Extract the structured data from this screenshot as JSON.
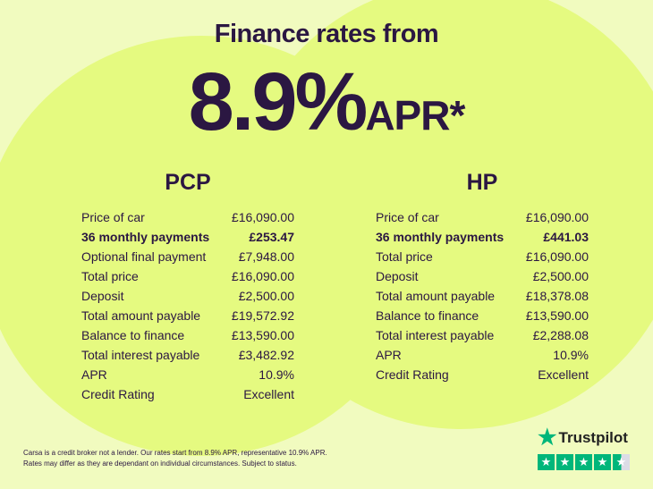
{
  "header": {
    "title": "Finance rates from",
    "rate": "8.9%",
    "rate_suffix": "APR*"
  },
  "pcp": {
    "title": "PCP",
    "rows": [
      {
        "label": "Price of car",
        "value": "£16,090.00"
      },
      {
        "label": "36 monthly payments",
        "value": "£253.47",
        "bold": true
      },
      {
        "label": "Optional final payment",
        "value": "£7,948.00"
      },
      {
        "label": "Total price",
        "value": "£16,090.00"
      },
      {
        "label": "Deposit",
        "value": "£2,500.00"
      },
      {
        "label": "Total amount payable",
        "value": "£19,572.92"
      },
      {
        "label": "Balance to finance",
        "value": "£13,590.00"
      },
      {
        "label": "Total interest payable",
        "value": "£3,482.92"
      },
      {
        "label": "APR",
        "value": "10.9%"
      },
      {
        "label": "Credit Rating",
        "value": "Excellent"
      }
    ]
  },
  "hp": {
    "title": "HP",
    "rows": [
      {
        "label": "Price of car",
        "value": "£16,090.00"
      },
      {
        "label": "36 monthly payments",
        "value": "£441.03",
        "bold": true
      },
      {
        "label": "Total price",
        "value": "£16,090.00"
      },
      {
        "label": "Deposit",
        "value": "£2,500.00"
      },
      {
        "label": "Total amount payable",
        "value": "£18,378.08"
      },
      {
        "label": "Balance to finance",
        "value": "£13,590.00"
      },
      {
        "label": "Total interest payable",
        "value": "£2,288.08"
      },
      {
        "label": "APR",
        "value": "10.9%"
      },
      {
        "label": "Credit Rating",
        "value": "Excellent"
      }
    ]
  },
  "disclaimer": {
    "line1": "Carsa is a credit broker not a lender. Our rates start from 8.9% APR, representative 10.9% APR.",
    "line2": "Rates may differ as they are dependant on individual circumstances. Subject to status."
  },
  "trustpilot": {
    "name": "Trustpilot",
    "rating_stars": 4.5,
    "icon": "star-icon",
    "brand_color": "#00b67a"
  },
  "colors": {
    "background": "#f1fbbf",
    "circles": "#e5fa80",
    "text": "#2b1742"
  }
}
